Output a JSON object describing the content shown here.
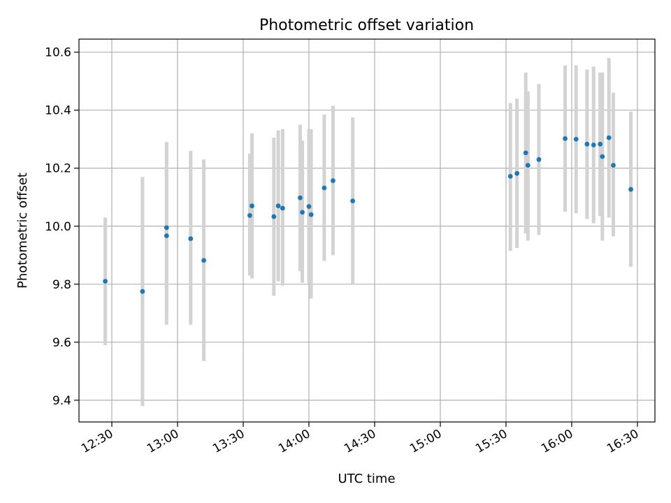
{
  "chart_data": {
    "type": "scatter",
    "title": "Photometric offset variation",
    "xlabel": "UTC time",
    "ylabel": "Photometric offset",
    "xlim": [
      "12:15",
      "16:38"
    ],
    "ylim": [
      9.325,
      10.645
    ],
    "grid": true,
    "x_ticks": [
      "12:30",
      "13:00",
      "13:30",
      "14:00",
      "14:30",
      "15:00",
      "15:30",
      "16:00",
      "16:30"
    ],
    "y_ticks": [
      "9.4",
      "9.6",
      "9.8",
      "10.0",
      "10.2",
      "10.4",
      "10.6"
    ],
    "y_tick_values": [
      9.4,
      9.6,
      9.8,
      10.0,
      10.2,
      10.4,
      10.6
    ],
    "colors": {
      "point": "#1f77b4",
      "errorbar": "#d3d3d3",
      "grid": "#b0b0b0"
    },
    "points": [
      {
        "x": "12:27",
        "y": 9.81,
        "y_low": 9.59,
        "y_high": 10.03
      },
      {
        "x": "12:44",
        "y": 9.775,
        "y_low": 9.38,
        "y_high": 10.17
      },
      {
        "x": "12:55",
        "y": 9.967,
        "y_low": 9.66,
        "y_high": 10.29
      },
      {
        "x": "12:55",
        "y": 9.995,
        "y_low": 9.7,
        "y_high": 10.29
      },
      {
        "x": "13:06",
        "y": 9.957,
        "y_low": 9.66,
        "y_high": 10.26
      },
      {
        "x": "13:12",
        "y": 9.882,
        "y_low": 9.535,
        "y_high": 10.23
      },
      {
        "x": "13:33",
        "y": 10.037,
        "y_low": 9.83,
        "y_high": 10.25
      },
      {
        "x": "13:34",
        "y": 10.07,
        "y_low": 9.82,
        "y_high": 10.32
      },
      {
        "x": "13:44",
        "y": 10.033,
        "y_low": 9.76,
        "y_high": 10.305
      },
      {
        "x": "13:46",
        "y": 10.07,
        "y_low": 9.81,
        "y_high": 10.33
      },
      {
        "x": "13:48",
        "y": 10.062,
        "y_low": 9.795,
        "y_high": 10.335
      },
      {
        "x": "13:56",
        "y": 10.098,
        "y_low": 9.845,
        "y_high": 10.35
      },
      {
        "x": "13:57",
        "y": 10.048,
        "y_low": 9.805,
        "y_high": 10.295
      },
      {
        "x": "14:00",
        "y": 10.068,
        "y_low": 9.805,
        "y_high": 10.335
      },
      {
        "x": "14:01",
        "y": 10.04,
        "y_low": 9.75,
        "y_high": 10.335
      },
      {
        "x": "14:07",
        "y": 10.132,
        "y_low": 9.88,
        "y_high": 10.385
      },
      {
        "x": "14:11",
        "y": 10.157,
        "y_low": 9.9,
        "y_high": 10.415
      },
      {
        "x": "14:20",
        "y": 10.087,
        "y_low": 9.8,
        "y_high": 10.375
      },
      {
        "x": "15:32",
        "y": 10.172,
        "y_low": 9.915,
        "y_high": 10.425
      },
      {
        "x": "15:35",
        "y": 10.182,
        "y_low": 9.925,
        "y_high": 10.44
      },
      {
        "x": "15:39",
        "y": 10.253,
        "y_low": 9.975,
        "y_high": 10.53
      },
      {
        "x": "15:40",
        "y": 10.21,
        "y_low": 9.95,
        "y_high": 10.465
      },
      {
        "x": "15:45",
        "y": 10.23,
        "y_low": 9.97,
        "y_high": 10.49
      },
      {
        "x": "15:57",
        "y": 10.302,
        "y_low": 10.05,
        "y_high": 10.555
      },
      {
        "x": "16:02",
        "y": 10.3,
        "y_low": 10.045,
        "y_high": 10.555
      },
      {
        "x": "16:07",
        "y": 10.283,
        "y_low": 10.025,
        "y_high": 10.54
      },
      {
        "x": "16:10",
        "y": 10.28,
        "y_low": 10.01,
        "y_high": 10.55
      },
      {
        "x": "16:13",
        "y": 10.283,
        "y_low": 10.035,
        "y_high": 10.53
      },
      {
        "x": "16:14",
        "y": 10.24,
        "y_low": 9.95,
        "y_high": 10.53
      },
      {
        "x": "16:17",
        "y": 10.305,
        "y_low": 10.03,
        "y_high": 10.58
      },
      {
        "x": "16:19",
        "y": 10.21,
        "y_low": 9.965,
        "y_high": 10.46
      },
      {
        "x": "16:27",
        "y": 10.127,
        "y_low": 9.86,
        "y_high": 10.395
      }
    ]
  }
}
